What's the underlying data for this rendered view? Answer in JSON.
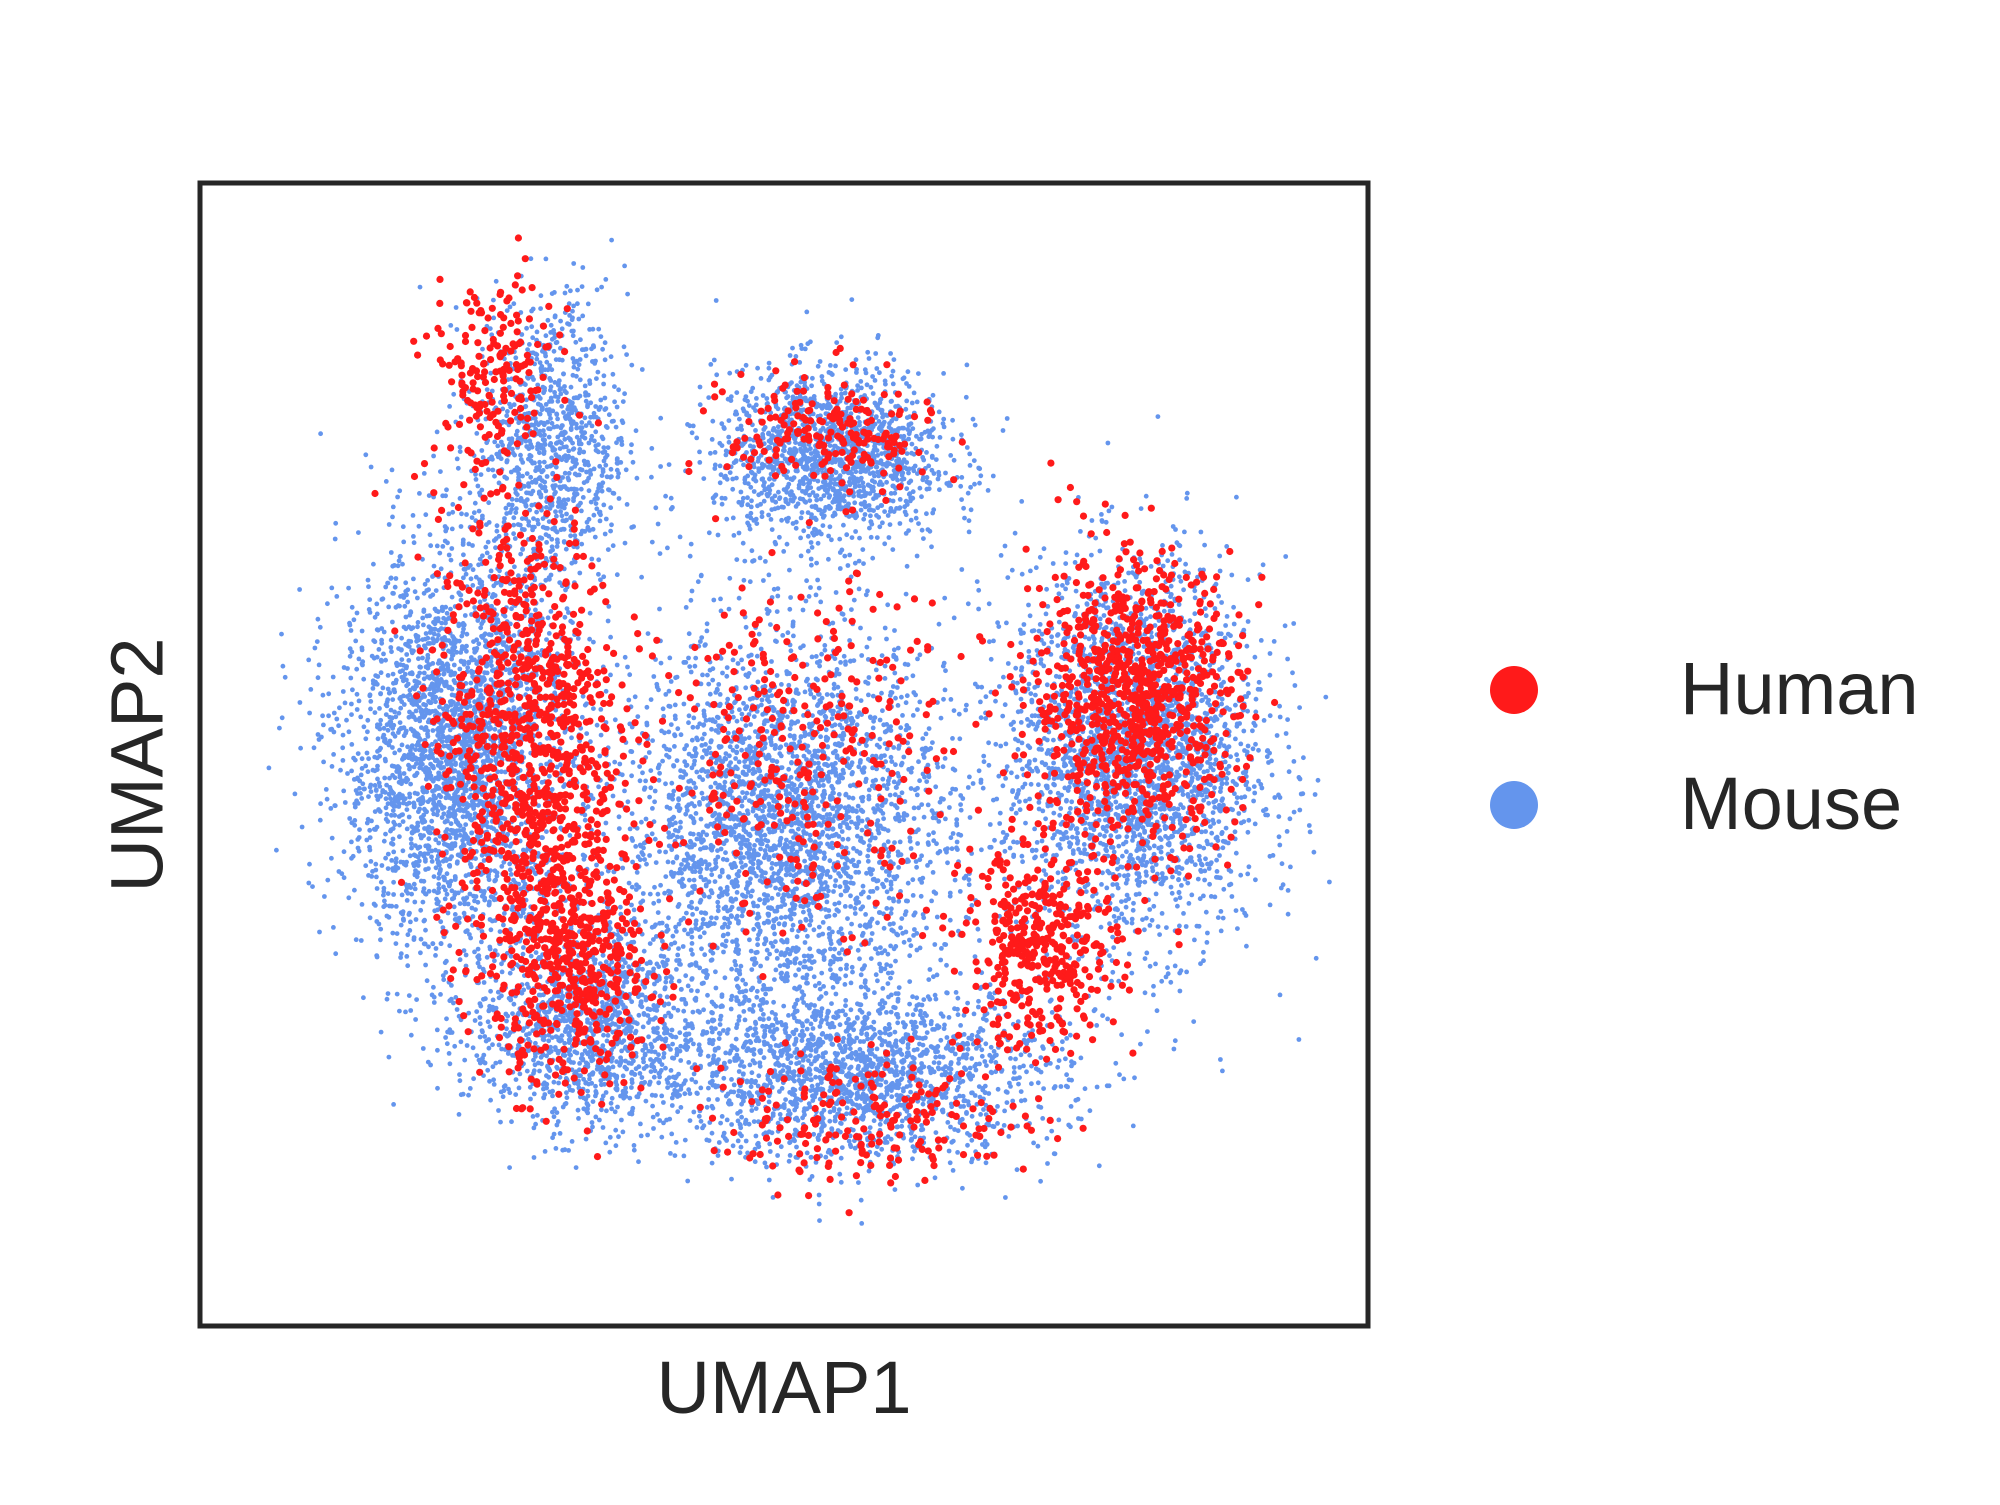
{
  "chart_data": {
    "type": "scatter",
    "title": "",
    "xlabel": "UMAP1",
    "ylabel": "UMAP2",
    "grid": false,
    "xticks": [],
    "yticks": [],
    "xlim": [
      0,
      10
    ],
    "ylim": [
      0,
      10
    ],
    "legend_position": "right",
    "series": [
      {
        "name": "Human",
        "color": "#ff1a1a",
        "clusters": [
          {
            "center": [
              2.8,
              5.2
            ],
            "spread": [
              0.7,
              1.8
            ],
            "n": 900
          },
          {
            "center": [
              3.2,
              3.2
            ],
            "spread": [
              0.6,
              1.0
            ],
            "n": 500
          },
          {
            "center": [
              2.5,
              8.3
            ],
            "spread": [
              0.5,
              0.8
            ],
            "n": 180
          },
          {
            "center": [
              5.4,
              7.8
            ],
            "spread": [
              0.8,
              0.5
            ],
            "n": 200
          },
          {
            "center": [
              5.2,
              5.0
            ],
            "spread": [
              1.1,
              1.3
            ],
            "n": 300
          },
          {
            "center": [
              8.0,
              5.5
            ],
            "spread": [
              0.8,
              1.1
            ],
            "n": 900
          },
          {
            "center": [
              7.2,
              3.3
            ],
            "spread": [
              0.6,
              0.8
            ],
            "n": 400
          },
          {
            "center": [
              5.8,
              1.8
            ],
            "spread": [
              1.3,
              0.5
            ],
            "n": 200
          }
        ]
      },
      {
        "name": "Mouse",
        "color": "#6495ed",
        "clusters": [
          {
            "center": [
              2.2,
              5.0
            ],
            "spread": [
              0.9,
              1.6
            ],
            "n": 2800
          },
          {
            "center": [
              3.0,
              7.7
            ],
            "spread": [
              0.6,
              1.2
            ],
            "n": 1000
          },
          {
            "center": [
              5.4,
              7.6
            ],
            "spread": [
              0.9,
              0.7
            ],
            "n": 1500
          },
          {
            "center": [
              5.0,
              4.4
            ],
            "spread": [
              1.3,
              1.5
            ],
            "n": 3000
          },
          {
            "center": [
              8.0,
              5.0
            ],
            "spread": [
              1.0,
              1.5
            ],
            "n": 2600
          },
          {
            "center": [
              5.6,
              2.2
            ],
            "spread": [
              1.6,
              0.7
            ],
            "n": 1800
          },
          {
            "center": [
              3.3,
              2.6
            ],
            "spread": [
              0.9,
              0.8
            ],
            "n": 1200
          }
        ]
      }
    ]
  }
}
